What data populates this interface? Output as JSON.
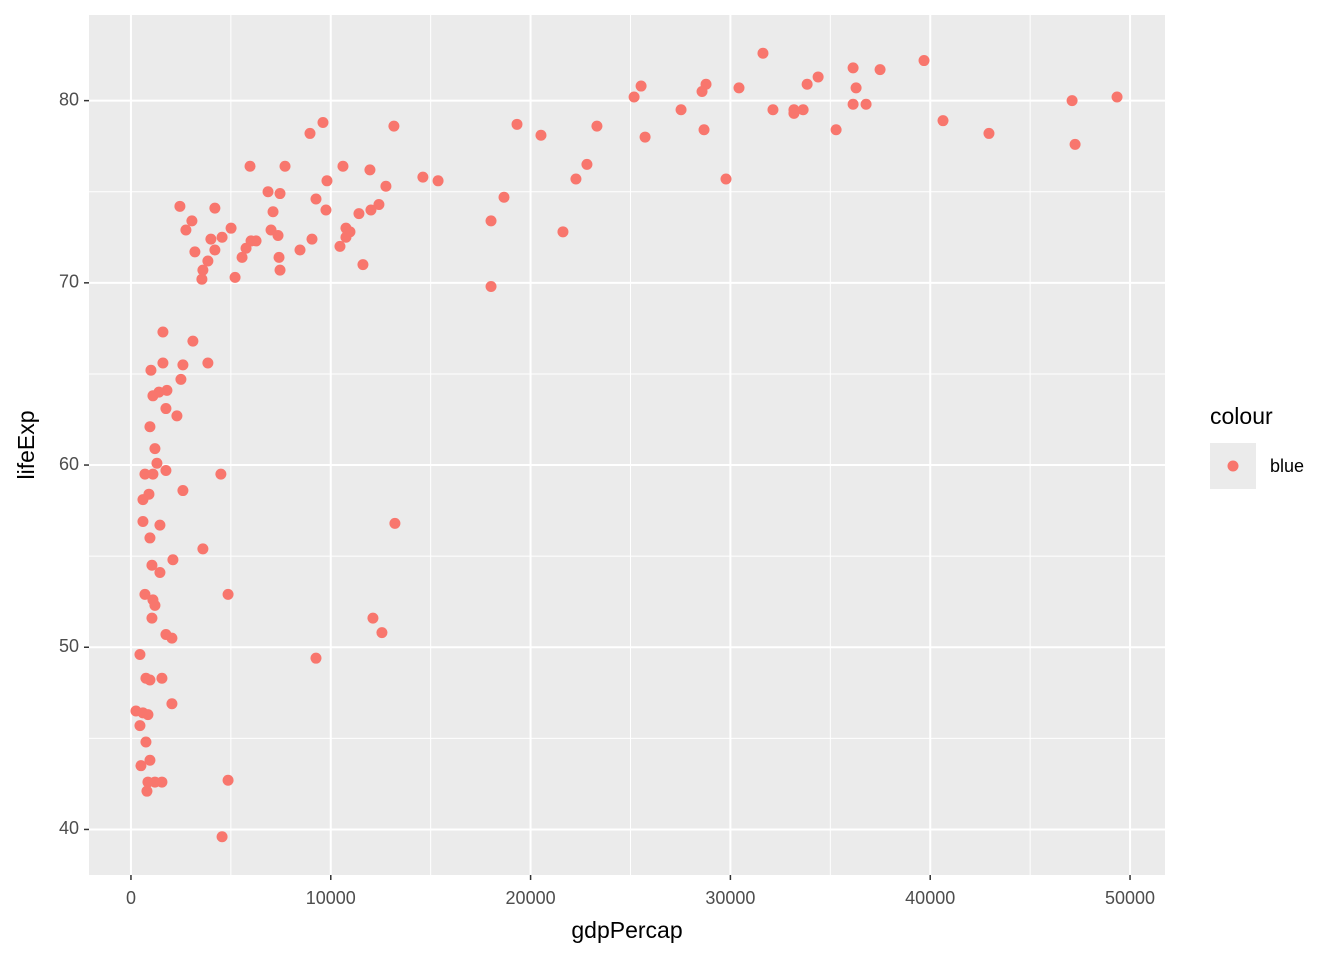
{
  "chart_data": {
    "type": "scatter",
    "x_label": "gdpPercap",
    "y_label": "lifeExp",
    "legend_title": "colour",
    "legend_position": "right",
    "xlim": [
      -2100,
      51750
    ],
    "ylim": [
      37.5,
      84.7
    ],
    "xticks": [
      0,
      10000,
      20000,
      30000,
      40000,
      50000
    ],
    "yticks": [
      40,
      50,
      60,
      70,
      80
    ],
    "x_minor_breaks": [
      5000,
      15000,
      25000,
      35000,
      45000
    ],
    "y_minor_breaks": [
      45,
      55,
      65,
      75
    ],
    "grid": true,
    "x": [
      49350,
      47100,
      47250,
      42940,
      40640,
      39690,
      37490,
      36140,
      36290,
      36140,
      36790,
      35290,
      34390,
      33840,
      33640,
      33180,
      33180,
      32130,
      31630,
      30430,
      29780,
      28780,
      28580,
      28680,
      27530,
      25730,
      25530,
      25180,
      23320,
      22820,
      22270,
      21620,
      20520,
      19320,
      18670,
      18020,
      18020,
      15370,
      14610,
      13160,
      13210,
      12760,
      12560,
      12410,
      12110,
      12010,
      11960,
      11610,
      11410,
      10960,
      10760,
      10760,
      10610,
      10460,
      9810,
      9760,
      9610,
      9260,
      9260,
      9060,
      8960,
      8460,
      7710,
      7460,
      7460,
      7410,
      7360,
      7110,
      7010,
      6860,
      6260,
      6010,
      5960,
      5760,
      5560,
      5210,
      5010,
      4860,
      4860,
      4560,
      4500,
      4560,
      4200,
      4200,
      4000,
      3850,
      3850,
      3600,
      3600,
      3550,
      3200,
      3100,
      3050,
      2750,
      2600,
      2600,
      2500,
      2450,
      2300,
      2100,
      2050,
      2050,
      1750,
      1800,
      1750,
      1750,
      1600,
      1600,
      1550,
      1550,
      1450,
      1450,
      1400,
      1300,
      1200,
      1200,
      1200,
      1100,
      1100,
      1100,
      1050,
      1050,
      1000,
      950,
      950,
      950,
      950,
      900,
      850,
      850,
      800,
      750,
      750,
      700,
      700,
      600,
      600,
      600,
      500,
      450,
      450,
      250
    ],
    "series": [
      {
        "name": "blue",
        "color": "#F8766D",
        "values": [
          80.2,
          80.0,
          77.6,
          78.2,
          78.9,
          82.2,
          81.7,
          81.8,
          80.7,
          79.8,
          79.8,
          78.4,
          81.3,
          80.9,
          79.5,
          79.5,
          79.3,
          79.5,
          82.6,
          80.7,
          75.7,
          80.9,
          80.5,
          78.4,
          79.5,
          78.0,
          80.8,
          80.2,
          78.6,
          76.5,
          75.7,
          72.8,
          78.1,
          78.7,
          74.7,
          73.4,
          69.8,
          75.6,
          75.8,
          78.6,
          56.8,
          75.3,
          50.8,
          74.3,
          51.6,
          74.0,
          76.2,
          71.0,
          73.8,
          72.8,
          72.5,
          73.0,
          76.4,
          72.0,
          75.6,
          74.0,
          78.8,
          49.4,
          74.6,
          72.4,
          78.2,
          71.8,
          76.4,
          70.7,
          74.9,
          71.4,
          72.6,
          73.9,
          72.9,
          75.0,
          72.3,
          72.3,
          76.4,
          71.9,
          71.4,
          70.3,
          73.0,
          52.9,
          42.7,
          72.5,
          59.5,
          39.6,
          71.8,
          74.1,
          72.4,
          71.2,
          65.6,
          55.4,
          70.7,
          70.2,
          71.7,
          66.8,
          73.4,
          72.9,
          58.6,
          65.5,
          64.7,
          74.2,
          62.7,
          54.8,
          50.5,
          46.9,
          50.7,
          64.1,
          63.1,
          59.7,
          67.3,
          65.6,
          48.3,
          42.6,
          54.1,
          56.7,
          64.0,
          60.1,
          42.6,
          52.3,
          60.9,
          52.6,
          63.8,
          59.5,
          51.6,
          54.5,
          65.2,
          62.1,
          56.0,
          43.8,
          48.2,
          58.4,
          46.3,
          42.6,
          42.1,
          48.3,
          44.8,
          52.9,
          59.5,
          58.1,
          56.9,
          46.4,
          43.5,
          45.7,
          49.6,
          46.5
        ]
      }
    ]
  }
}
